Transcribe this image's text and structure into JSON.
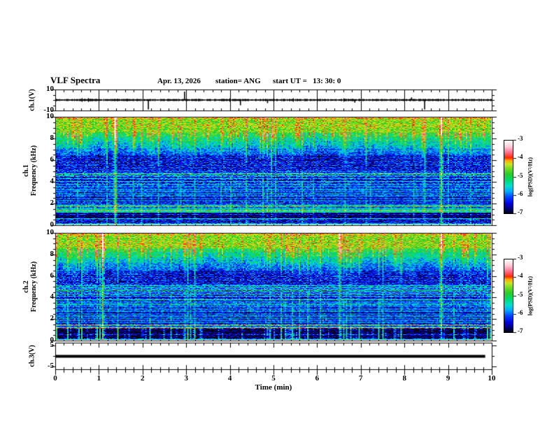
{
  "header": {
    "title": "VLF Spectra",
    "date": "Apr. 13, 2026",
    "station": "station= ANG",
    "start_ut": "start UT =   13: 30: 0"
  },
  "axes": {
    "time": {
      "label": "Time (min)",
      "ticks": [
        "0",
        "1",
        "2",
        "3",
        "4",
        "5",
        "6",
        "7",
        "8",
        "9",
        "10"
      ]
    },
    "freq": {
      "tick_values": [
        0,
        2,
        4,
        6,
        8,
        10
      ],
      "ticks": [
        "0",
        "2",
        "4",
        "6",
        "8",
        "10"
      ]
    },
    "wave1": {
      "name": "ch.1(V)",
      "ymax": "10",
      "ymin": "-10"
    },
    "spec1": {
      "channel": "ch.1",
      "ylabel": "Frequency (kHz)"
    },
    "spec2": {
      "channel": "ch.2",
      "ylabel": "Frequency (kHz)"
    },
    "wave3": {
      "name": "ch.3(V)",
      "ymax": "5",
      "ymin": "-5"
    }
  },
  "colorbar": {
    "label": "log(PSD)(V²/Hz)",
    "ticks": [
      "-3",
      "-4",
      "-5",
      "-6",
      "-7"
    ]
  },
  "colormap": [
    {
      "level": -7.0,
      "color": "#000018"
    },
    {
      "level": -6.75,
      "color": "#000078"
    },
    {
      "level": -6.45,
      "color": "#0000e0"
    },
    {
      "level": -6.1,
      "color": "#0044ff"
    },
    {
      "level": -5.8,
      "color": "#00a8ff"
    },
    {
      "level": -5.5,
      "color": "#00e0cc"
    },
    {
      "level": -5.15,
      "color": "#00d86c"
    },
    {
      "level": -4.85,
      "color": "#28cc28"
    },
    {
      "level": -4.55,
      "color": "#70dc20"
    },
    {
      "level": -4.3,
      "color": "#cce420"
    },
    {
      "level": -4.1,
      "color": "#ffaa00"
    },
    {
      "level": -3.95,
      "color": "#ff2a00"
    },
    {
      "level": -3.65,
      "color": "#ff7090"
    },
    {
      "level": -3.35,
      "color": "#ffc8d4"
    },
    {
      "level": -3.0,
      "color": "#ffffff"
    }
  ],
  "chart_data": [
    {
      "type": "line",
      "name": "ch.1 voltage waveform",
      "xlabel": "Time (min)",
      "ylabel": "ch.1(V)",
      "xlim": [
        0,
        10
      ],
      "ylim": [
        -10,
        10
      ],
      "baseline": 0,
      "noise_amplitude_v": 1,
      "spikes": [
        {
          "t": 2.12,
          "v": -9
        },
        {
          "t": 2.95,
          "v": 8
        },
        {
          "t": 4.23,
          "v": -5
        },
        {
          "t": 4.85,
          "v": -3
        },
        {
          "t": 6.85,
          "v": -2.5
        },
        {
          "t": 8.15,
          "v": 2.5
        },
        {
          "t": 8.45,
          "v": -9
        },
        {
          "t": 9.33,
          "v": 1.5
        }
      ],
      "gridlines_every_min": 1
    },
    {
      "type": "heatmap",
      "name": "ch.1 VLF spectrogram",
      "xlabel": "Time (min)",
      "ylabel": "Frequency (kHz)",
      "xlim": [
        0,
        10
      ],
      "ylim": [
        0,
        10
      ],
      "zlabel": "log(PSD)(V²/Hz)",
      "zlim": [
        -7,
        -3
      ],
      "background_bands": [
        {
          "f0": 8.6,
          "f1": 10,
          "level": -4.55
        },
        {
          "f0": 6.5,
          "f1": 8.6,
          "level_top": -4.9,
          "level_bottom": -6.1
        },
        {
          "f0": 5.2,
          "f1": 6.5,
          "level": -6.35
        },
        {
          "f0": 4.6,
          "f1": 5.2,
          "level": -6.3
        },
        {
          "f0": 3.05,
          "f1": 4.6,
          "level": -6.4
        },
        {
          "f0": 1.95,
          "f1": 3.05,
          "level": -6.6
        },
        {
          "f0": 1.1,
          "f1": 1.95,
          "level": -6.5
        },
        {
          "f0": 0.35,
          "f1": 1.1,
          "level": -6.85
        },
        {
          "f0": 0,
          "f1": 0.35,
          "level": -6.6
        }
      ],
      "horizontal_lines": [
        {
          "f": 4.75,
          "boost": 1.4
        },
        {
          "f": 4.55,
          "boost": 0.9
        },
        {
          "f": 4.3,
          "boost": 0.7
        },
        {
          "f": 4.05,
          "boost": 0.8
        },
        {
          "f": 3.8,
          "boost": 1.3
        },
        {
          "f": 3.55,
          "boost": 0.7
        },
        {
          "f": 3.3,
          "boost": 0.9
        },
        {
          "f": 3.1,
          "boost": 0.6
        },
        {
          "f": 2.9,
          "boost": 1.1
        },
        {
          "f": 2.7,
          "boost": 1.0
        },
        {
          "f": 2.45,
          "boost": 0.7
        },
        {
          "f": 2.25,
          "boost": 0.9
        },
        {
          "f": 2.05,
          "boost": 0.6
        },
        {
          "f": 1.9,
          "boost": 1.0,
          "hot": true
        },
        {
          "f": 1.72,
          "boost": 2.0,
          "hot": true
        },
        {
          "f": 1.55,
          "boost": 1.1
        },
        {
          "f": 1.45,
          "boost": 1.5
        },
        {
          "f": 1.32,
          "boost": 2.9,
          "hot": true
        },
        {
          "f": 1.18,
          "boost": 1.1
        },
        {
          "f": 0.95,
          "boost": 0.5
        },
        {
          "f": 0.6,
          "boost": 1.2
        },
        {
          "f": 0.42,
          "boost": 0.6
        },
        {
          "f": 0.15,
          "boost": 0.9
        }
      ],
      "vertical_streaks": {
        "density": 0.35,
        "strong": [
          {
            "t": 1.35,
            "boost": 1.2
          },
          {
            "t": 8.85,
            "boost": 1.5
          }
        ]
      }
    },
    {
      "type": "heatmap",
      "name": "ch.2 VLF spectrogram",
      "xlabel": "Time (min)",
      "ylabel": "Frequency (kHz)",
      "xlim": [
        0,
        10
      ],
      "ylim": [
        0,
        10
      ],
      "zlabel": "log(PSD)(V²/Hz)",
      "zlim": [
        -7,
        -3
      ],
      "background_bands": [
        {
          "f0": 8.6,
          "f1": 10,
          "level": -4.55
        },
        {
          "f0": 6.5,
          "f1": 8.6,
          "level_top": -4.9,
          "level_bottom": -6.1
        },
        {
          "f0": 5.2,
          "f1": 6.5,
          "level": -6.35
        },
        {
          "f0": 4.6,
          "f1": 5.2,
          "level": -6.3
        },
        {
          "f0": 3.05,
          "f1": 4.6,
          "level": -6.4
        },
        {
          "f0": 1.95,
          "f1": 3.05,
          "level": -6.6
        },
        {
          "f0": 1.15,
          "f1": 1.95,
          "level": -6.55
        },
        {
          "f0": 0,
          "f1": 1.15,
          "level": -6.95
        }
      ],
      "horizontal_lines": [
        {
          "f": 5.15,
          "boost": 0.9
        },
        {
          "f": 4.95,
          "boost": 0.8
        },
        {
          "f": 4.75,
          "boost": 1.1
        },
        {
          "f": 4.55,
          "boost": 0.9
        },
        {
          "f": 4.35,
          "boost": 0.8
        },
        {
          "f": 4.15,
          "boost": 0.7
        },
        {
          "f": 3.85,
          "boost": 1.3
        },
        {
          "f": 3.6,
          "boost": 0.8
        },
        {
          "f": 3.35,
          "boost": 1.0
        },
        {
          "f": 3.15,
          "boost": 0.7
        },
        {
          "f": 2.95,
          "boost": 1.0
        },
        {
          "f": 2.75,
          "boost": 1.1
        },
        {
          "f": 2.5,
          "boost": 0.8
        },
        {
          "f": 2.3,
          "boost": 1.2
        },
        {
          "f": 2.1,
          "boost": 0.9
        },
        {
          "f": 1.9,
          "boost": 1.0,
          "hot": true
        },
        {
          "f": 1.7,
          "boost": 0.8
        },
        {
          "f": 1.4,
          "boost": 2.35,
          "hot": true
        },
        {
          "f": 1.15,
          "boost": 2.35,
          "hot": true
        },
        {
          "f": 0.5,
          "boost": 0.6
        },
        {
          "f": 0.12,
          "boost": 0.8
        }
      ],
      "vertical_streaks": {
        "density": 0.35,
        "strong": [
          {
            "t": 1.05,
            "boost": 1.2
          },
          {
            "t": 6.5,
            "boost": 1.0
          },
          {
            "t": 8.85,
            "boost": 1.3
          }
        ]
      }
    },
    {
      "type": "line",
      "name": "ch.3 voltage waveform",
      "xlabel": "Time (min)",
      "ylabel": "ch.3(V)",
      "xlim": [
        0,
        10
      ],
      "ylim": [
        -5,
        5
      ],
      "value": 0,
      "x_start": 0,
      "x_end": 9.85,
      "line_thickness_px": 4
    }
  ]
}
